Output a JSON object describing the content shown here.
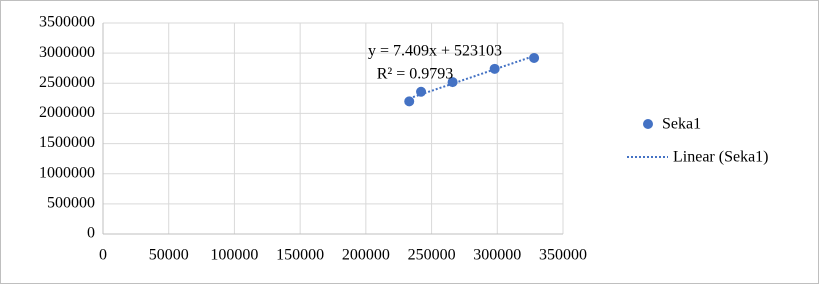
{
  "chart_data": {
    "type": "scatter",
    "x": [
      233000,
      242000,
      266000,
      298000,
      328000
    ],
    "series": [
      {
        "name": "Seka1",
        "color": "#4472c4",
        "values": [
          2200000,
          2360000,
          2520000,
          2740000,
          2920000
        ]
      }
    ],
    "trendline": {
      "name": "Linear (Seka1)",
      "slope": 7.409,
      "intercept": 523103,
      "equation": "y = 7.409x + 523103",
      "r2": "R² = 0.9793",
      "style": "dotted"
    },
    "xlim": [
      0,
      350000
    ],
    "xticks": [
      0,
      50000,
      100000,
      150000,
      200000,
      250000,
      300000,
      350000
    ],
    "ylim": [
      0,
      3500000
    ],
    "yticks": [
      0,
      500000,
      1000000,
      1500000,
      2000000,
      2500000,
      3000000,
      3500000
    ],
    "grid": true,
    "legend": "right"
  }
}
